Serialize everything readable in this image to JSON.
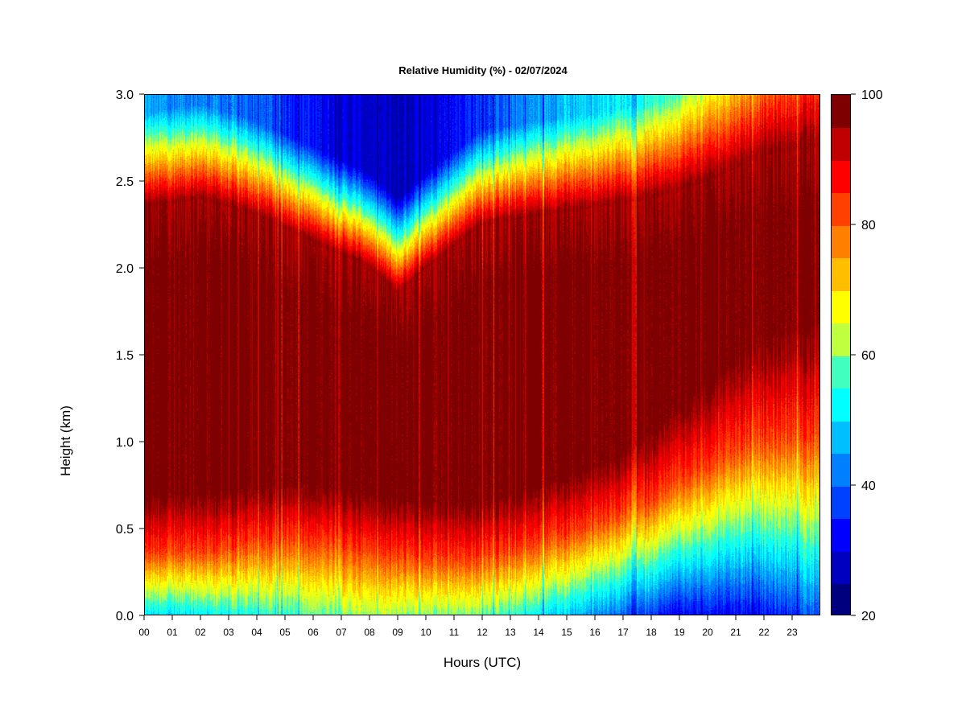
{
  "chart_data": {
    "type": "heatmap",
    "title": "Relative Humidity (%) - 02/07/2024",
    "xlabel": "Hours (UTC)",
    "ylabel": "Height (km)",
    "x_range": [
      0,
      24
    ],
    "y_range": [
      0,
      3.0
    ],
    "x_ticks": [
      "00",
      "01",
      "02",
      "03",
      "04",
      "05",
      "06",
      "07",
      "08",
      "09",
      "10",
      "11",
      "12",
      "13",
      "14",
      "15",
      "16",
      "17",
      "18",
      "19",
      "20",
      "21",
      "22",
      "23"
    ],
    "y_ticks": [
      "0.0",
      "0.5",
      "1.0",
      "1.5",
      "2.0",
      "2.5",
      "3.0"
    ],
    "colorbar": {
      "range": [
        20,
        100
      ],
      "step": 5,
      "tick_labels": [
        "20",
        "40",
        "60",
        "80",
        "100"
      ],
      "colors": [
        "#00007F",
        "#0000BF",
        "#0000FF",
        "#0040FF",
        "#0080FF",
        "#00BFFF",
        "#00FFFF",
        "#40FFBF",
        "#80FF80",
        "#BFFF40",
        "#FFFF00",
        "#FFBF00",
        "#FF8000",
        "#FF4000",
        "#FF0000",
        "#BF0000",
        "#7F0000"
      ]
    },
    "features": {
      "moist_layer_top_km": {
        "hours": [
          0,
          2,
          4,
          6,
          8,
          9,
          10,
          12,
          14,
          16,
          18,
          20,
          22,
          24
        ],
        "values": [
          2.35,
          2.4,
          2.3,
          2.15,
          2.0,
          1.85,
          2.0,
          2.25,
          2.3,
          2.35,
          2.4,
          2.5,
          2.65,
          2.7
        ]
      },
      "moist_layer_bottom_km": {
        "hours": [
          0,
          2,
          4,
          6,
          8,
          10,
          12,
          14,
          16,
          18,
          20,
          22,
          24
        ],
        "values": [
          0.35,
          0.35,
          0.4,
          0.4,
          0.35,
          0.3,
          0.3,
          0.4,
          0.5,
          0.65,
          0.85,
          1.0,
          1.0
        ]
      },
      "upper_dry_minimum_percent": {
        "hours": [
          0,
          4,
          7,
          9,
          11,
          14,
          18,
          22,
          24
        ],
        "values": [
          45,
          40,
          30,
          27,
          33,
          45,
          55,
          70,
          78
        ]
      },
      "surface_minimum_percent": {
        "hours": [
          0,
          4,
          8,
          12,
          16,
          19,
          22,
          24
        ],
        "values": [
          50,
          55,
          62,
          60,
          45,
          32,
          33,
          40
        ]
      }
    }
  }
}
